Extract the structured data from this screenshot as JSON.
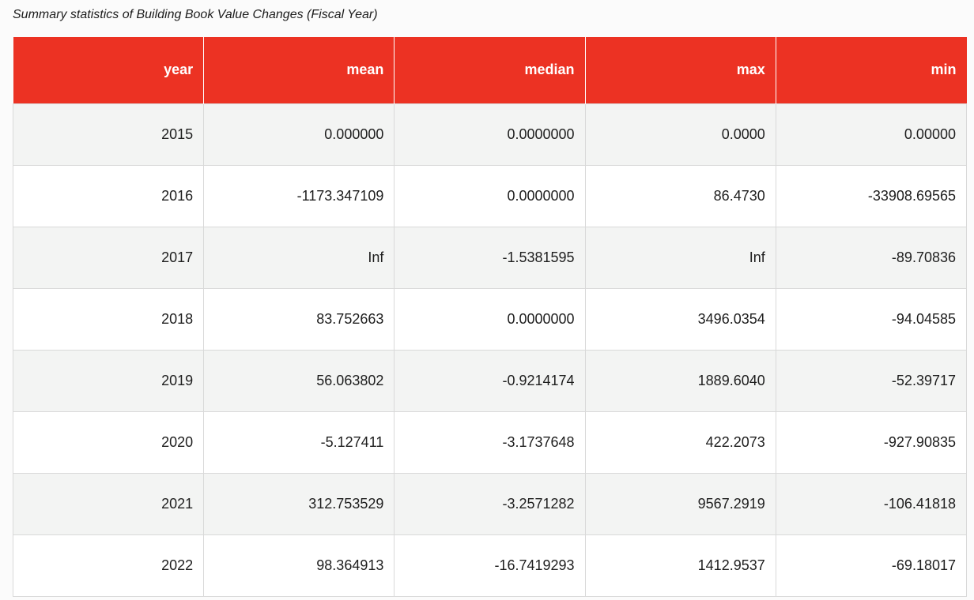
{
  "caption": "Summary statistics of Building Book Value Changes (Fiscal Year)",
  "columns": [
    "year",
    "mean",
    "median",
    "max",
    "min"
  ],
  "rows": [
    [
      "2015",
      "0.000000",
      "0.0000000",
      "0.0000",
      "0.00000"
    ],
    [
      "2016",
      "-1173.347109",
      "0.0000000",
      "86.4730",
      "-33908.69565"
    ],
    [
      "2017",
      "Inf",
      "-1.5381595",
      "Inf",
      "-89.70836"
    ],
    [
      "2018",
      "83.752663",
      "0.0000000",
      "3496.0354",
      "-94.04585"
    ],
    [
      "2019",
      "56.063802",
      "-0.9214174",
      "1889.6040",
      "-52.39717"
    ],
    [
      "2020",
      "-5.127411",
      "-3.1737648",
      "422.2073",
      "-927.90835"
    ],
    [
      "2021",
      "312.753529",
      "-3.2571282",
      "9567.2919",
      "-106.41818"
    ],
    [
      "2022",
      "98.364913",
      "-16.7419293",
      "1412.9537",
      "-69.18017"
    ]
  ],
  "colors": {
    "header_bg": "#ec3223",
    "header_text": "#ffffff",
    "row_stripe": "#f3f4f3",
    "row_plain": "#ffffff",
    "grid": "#d9d9d9"
  }
}
